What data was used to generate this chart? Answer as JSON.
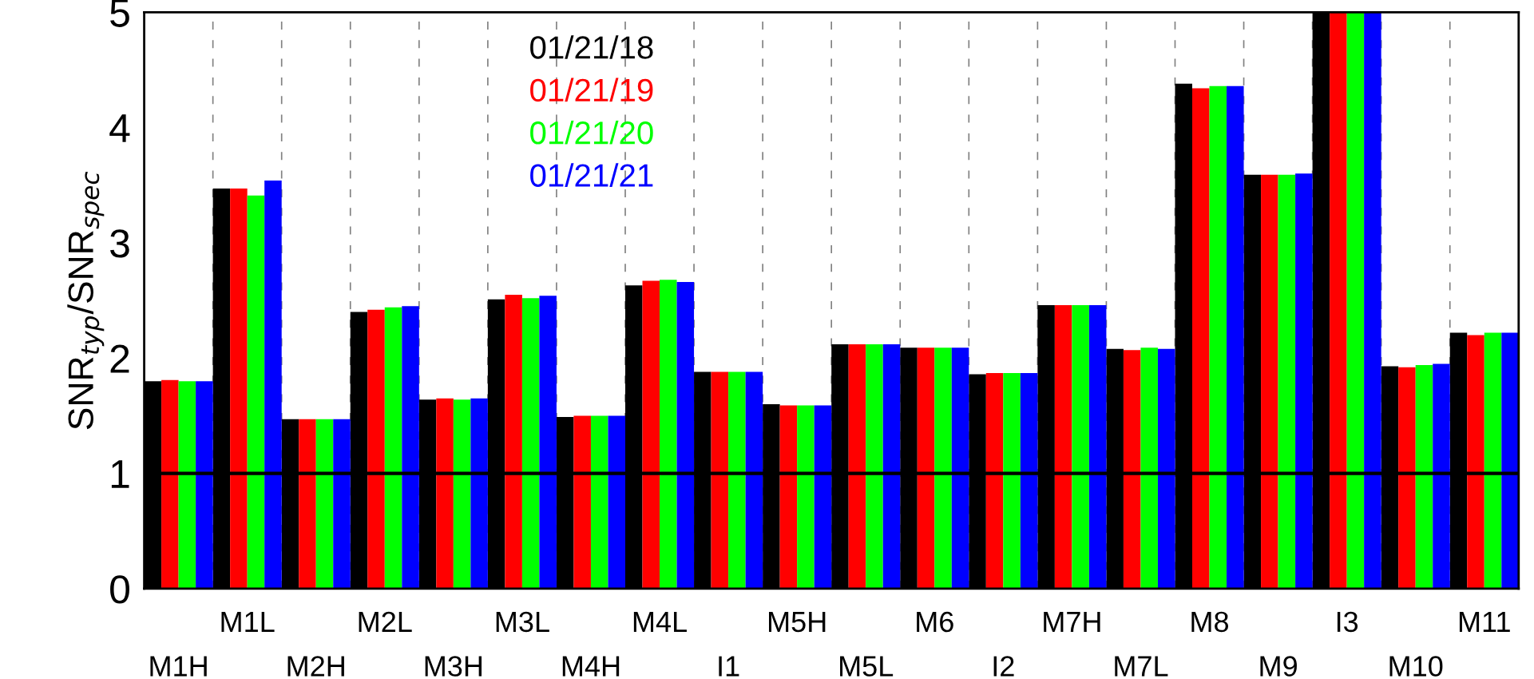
{
  "chart_data": {
    "type": "bar",
    "ylabel": "SNR$_{typ}$/SNR$_{spec}$",
    "categories": [
      "M1H",
      "M1L",
      "M2H",
      "M2L",
      "M3H",
      "M3L",
      "M4H",
      "M4L",
      "I1",
      "M5H",
      "M5L",
      "M6",
      "I2",
      "M7H",
      "M7L",
      "M8",
      "M9",
      "I3",
      "M10",
      "M11"
    ],
    "series": [
      {
        "name": "01/21/18",
        "color": "#000000",
        "values": [
          1.8,
          3.47,
          1.47,
          2.4,
          1.64,
          2.51,
          1.49,
          2.63,
          1.88,
          1.6,
          2.12,
          2.09,
          1.86,
          2.46,
          2.08,
          4.38,
          3.59,
          5,
          1.93,
          2.22
        ]
      },
      {
        "name": "01/21/19",
        "color": "#ff0000",
        "values": [
          1.81,
          3.47,
          1.47,
          2.42,
          1.65,
          2.55,
          1.5,
          2.67,
          1.88,
          1.59,
          2.12,
          2.09,
          1.87,
          2.46,
          2.07,
          4.34,
          3.59,
          5,
          1.92,
          2.2
        ]
      },
      {
        "name": "01/21/20",
        "color": "#00ff00",
        "values": [
          1.8,
          3.41,
          1.47,
          2.44,
          1.64,
          2.52,
          1.5,
          2.68,
          1.88,
          1.59,
          2.12,
          2.09,
          1.87,
          2.46,
          2.09,
          4.36,
          3.59,
          5,
          1.94,
          2.22
        ]
      },
      {
        "name": "01/21/21",
        "color": "#0000ff",
        "values": [
          1.8,
          3.54,
          1.47,
          2.45,
          1.65,
          2.54,
          1.5,
          2.66,
          1.88,
          1.59,
          2.12,
          2.09,
          1.87,
          2.46,
          2.08,
          4.36,
          3.6,
          5,
          1.95,
          2.22
        ]
      }
    ],
    "ylim": [
      0,
      5
    ],
    "yticks": [
      0,
      1,
      2,
      3,
      4,
      5
    ],
    "ref_lines": [
      {
        "axis": "y",
        "value": 1,
        "color": "#000000",
        "line_style": "solid"
      }
    ],
    "grid": "x",
    "legend": "top"
  }
}
